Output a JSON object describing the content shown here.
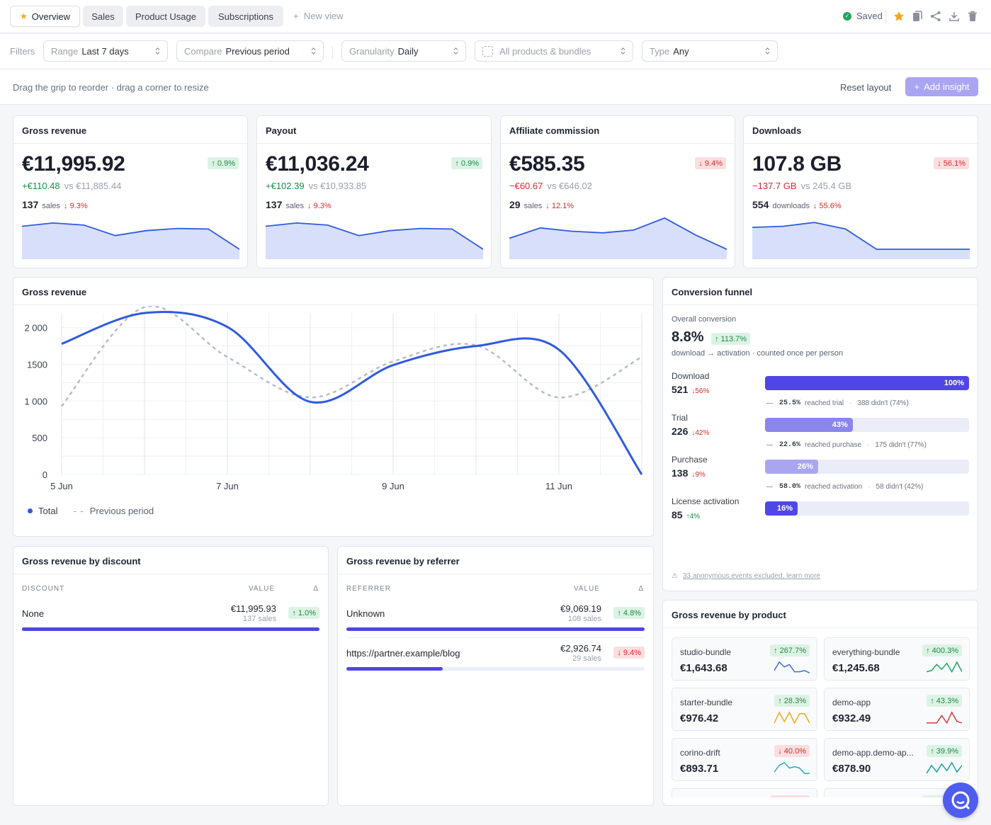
{
  "tabs": [
    {
      "label": "Overview",
      "active": true
    },
    {
      "label": "Sales"
    },
    {
      "label": "Product Usage"
    },
    {
      "label": "Subscriptions"
    }
  ],
  "new_view": "New view",
  "saved": "Saved",
  "filters": {
    "label": "Filters",
    "range": {
      "key": "Range",
      "value": "Last 7 days"
    },
    "compare": {
      "key": "Compare",
      "value": "Previous period"
    },
    "granularity": {
      "key": "Granularity",
      "value": "Daily"
    },
    "products": {
      "value": "All products & bundles"
    },
    "type": {
      "key": "Type",
      "value": "Any"
    }
  },
  "hint": "Drag the grip to reorder · drag a corner to resize",
  "reset_layout": "Reset layout",
  "add_insight": "Add insight",
  "kpis": [
    {
      "title": "Gross revenue",
      "value": "€11,995.92",
      "badge": "↑ 0.9%",
      "dir": "up",
      "delta": "+€110.48",
      "vs": "vs €11,885.44",
      "count": "137",
      "unit": "sales",
      "count_delta": "↓ 9.3%",
      "series": [
        60,
        66,
        62,
        43,
        52,
        56,
        55,
        18
      ]
    },
    {
      "title": "Payout",
      "value": "€11,036.24",
      "badge": "↑ 0.9%",
      "dir": "up",
      "delta": "+€102.39",
      "vs": "vs €10,933.85",
      "count": "137",
      "unit": "sales",
      "count_delta": "↓ 9.3%",
      "series": [
        60,
        66,
        62,
        43,
        52,
        56,
        55,
        18
      ]
    },
    {
      "title": "Affiliate commission",
      "value": "€585.35",
      "badge": "↓ 9.4%",
      "dir": "down",
      "delta": "−€60.67",
      "vs": "vs €646.02",
      "count": "29",
      "unit": "sales",
      "count_delta": "↓ 12.1%",
      "series": [
        38,
        57,
        51,
        48,
        53,
        75,
        44,
        18
      ]
    },
    {
      "title": "Downloads",
      "value": "107.8 GB",
      "badge": "↓ 56.1%",
      "dir": "down",
      "delta": "−137.7 GB",
      "vs": "vs 245.4 GB",
      "count": "554",
      "unit": "downloads",
      "count_delta": "↓ 55.6%",
      "series": [
        58,
        60,
        67,
        55,
        18,
        18,
        18,
        18
      ]
    }
  ],
  "main_chart": {
    "title": "Gross revenue",
    "legend_total": "Total",
    "legend_prev": "Previous period",
    "chart_data": {
      "type": "line",
      "x": [
        "5 Jun",
        "6 Jun",
        "7 Jun",
        "8 Jun",
        "9 Jun",
        "10 Jun",
        "11 Jun",
        "12 Jun"
      ],
      "x_tick_labels": [
        "5 Jun",
        "7 Jun",
        "9 Jun",
        "11 Jun"
      ],
      "y_ticks": [
        "2 000",
        "1500",
        "1 000",
        "500",
        "0"
      ],
      "ylim": [
        0,
        2200
      ],
      "grid": true,
      "series": [
        {
          "name": "Total",
          "color": "#2f5be0",
          "values": [
            1780,
            2200,
            2010,
            990,
            1490,
            1750,
            1700,
            0
          ]
        },
        {
          "name": "Previous period",
          "color": "#b8bcc4",
          "dashed": true,
          "values": [
            930,
            2280,
            1600,
            1050,
            1540,
            1760,
            1050,
            1600
          ]
        }
      ]
    }
  },
  "funnel": {
    "title": "Conversion funnel",
    "overall_label": "Overall conversion",
    "overall_value": "8.8%",
    "overall_badge": "↑ 113.7%",
    "subtitle": "download → activation · counted once per person",
    "stages": [
      {
        "name": "Download",
        "count": "521",
        "delta": "↓56%",
        "dir": "down",
        "pct": 100,
        "pct_label": "100%",
        "color": "#4f46e5",
        "conv": "25.5%",
        "conv_text": "reached trial",
        "lost": "388 didn't (74%)"
      },
      {
        "name": "Trial",
        "count": "226",
        "delta": "↓42%",
        "dir": "down",
        "pct": 43,
        "pct_label": "43%",
        "color": "#8b86ec",
        "conv": "22.6%",
        "conv_text": "reached purchase",
        "lost": "175 didn't (77%)"
      },
      {
        "name": "Purchase",
        "count": "138",
        "delta": "↓9%",
        "dir": "down",
        "pct": 26,
        "pct_label": "26%",
        "color": "#a9a6f0",
        "conv": "58.0%",
        "conv_text": "reached activation",
        "lost": "58 didn't (42%)"
      },
      {
        "name": "License activation",
        "count": "85",
        "delta": "↑4%",
        "dir": "up",
        "pct": 16,
        "pct_label": "16%",
        "color": "#4f46e5"
      }
    ],
    "footnote": "33 anonymous events excluded, learn more"
  },
  "discount": {
    "title": "Gross revenue by discount",
    "col1": "DISCOUNT",
    "col2": "VALUE",
    "col3": "Δ",
    "rows": [
      {
        "name": "None",
        "value": "€11,995.93",
        "sub": "137 sales",
        "badge": "↑ 1.0%",
        "dir": "up",
        "pct": 100
      }
    ]
  },
  "referrer": {
    "title": "Gross revenue by referrer",
    "col1": "REFERRER",
    "col2": "VALUE",
    "col3": "Δ",
    "rows": [
      {
        "name": "Unknown",
        "value": "€9,069.19",
        "sub": "108 sales",
        "badge": "↑ 4.8%",
        "dir": "up",
        "pct": 100
      },
      {
        "name": "https://partner.example/blog",
        "value": "€2,926.74",
        "sub": "29 sales",
        "badge": "↓ 9.4%",
        "dir": "down",
        "pct": 32.3
      }
    ]
  },
  "products": {
    "title": "Gross revenue by product",
    "tiles": [
      {
        "name": "studio-bundle",
        "value": "€1,643.68",
        "badge": "↑ 267.7%",
        "dir": "up",
        "color": "#3b6fe0",
        "spark": [
          3,
          10,
          6,
          8,
          2,
          2,
          3,
          1
        ]
      },
      {
        "name": "everything-bundle",
        "value": "€1,245.68",
        "badge": "↑ 400.3%",
        "dir": "up",
        "color": "#22a55a",
        "spark": [
          2,
          3,
          8,
          4,
          9,
          2,
          10,
          2
        ]
      },
      {
        "name": "starter-bundle",
        "value": "€976.42",
        "badge": "↑ 28.3%",
        "dir": "up",
        "color": "#f2a81d",
        "spark": [
          1,
          9,
          2,
          9,
          1,
          8,
          8,
          1
        ]
      },
      {
        "name": "demo-app",
        "value": "€932.49",
        "badge": "↑ 43.3%",
        "dir": "up",
        "color": "#d93a3a",
        "spark": [
          1,
          1,
          1,
          6,
          1,
          8,
          2,
          1
        ]
      },
      {
        "name": "corino-drift",
        "value": "€893.71",
        "badge": "↓ 40.0%",
        "dir": "down",
        "color": "#2aa7c9",
        "spark": [
          2,
          7,
          9,
          5,
          6,
          5,
          1,
          1
        ]
      },
      {
        "name": "demo-app.demo-ap...",
        "value": "€878.90",
        "badge": "↑ 39.9%",
        "dir": "up",
        "color": "#16a39a",
        "spark": [
          1,
          7,
          2,
          8,
          3,
          9,
          2,
          7
        ]
      }
    ]
  }
}
